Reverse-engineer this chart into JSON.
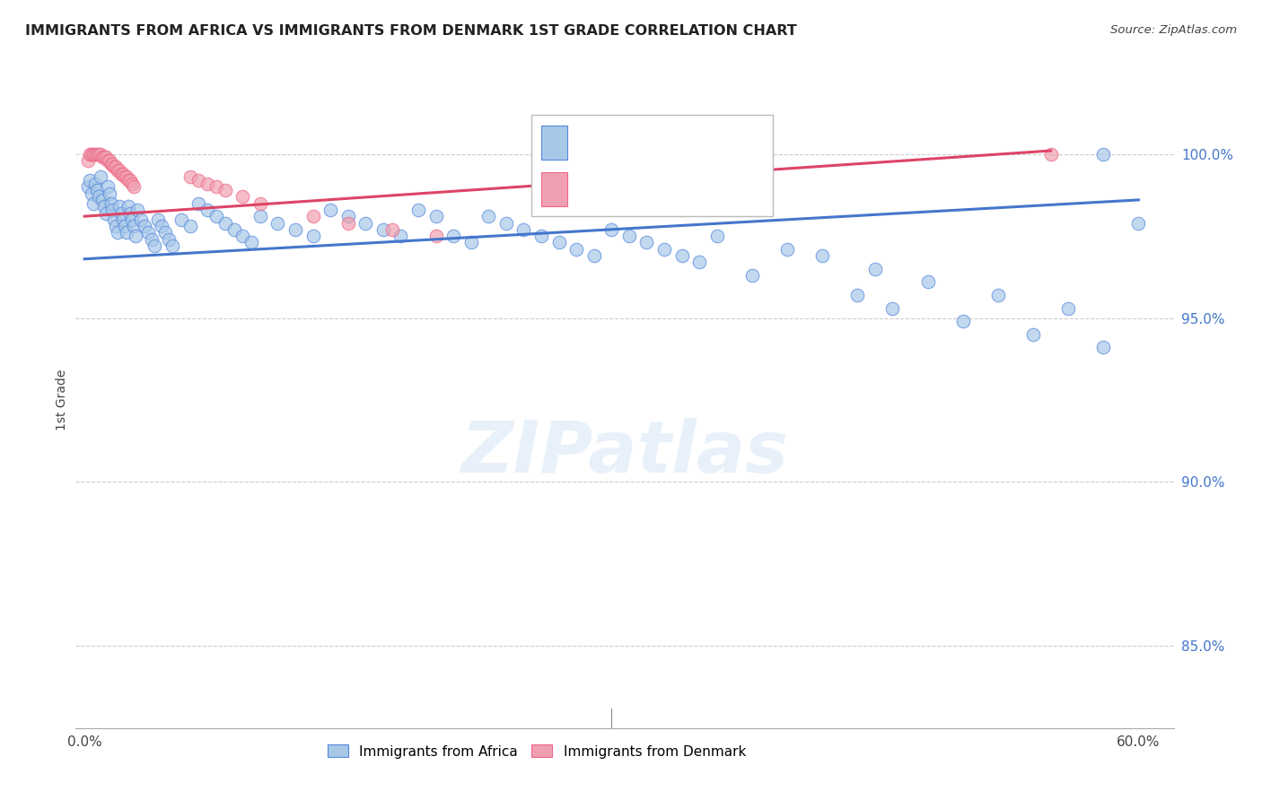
{
  "title": "IMMIGRANTS FROM AFRICA VS IMMIGRANTS FROM DENMARK 1ST GRADE CORRELATION CHART",
  "source": "Source: ZipAtlas.com",
  "ylabel": "1st Grade",
  "x_tick_labels": [
    "0.0%",
    "",
    "",
    "",
    "",
    "",
    "60.0%"
  ],
  "x_tick_values": [
    0.0,
    0.1,
    0.2,
    0.3,
    0.4,
    0.5,
    0.6
  ],
  "y_tick_labels": [
    "85.0%",
    "90.0%",
    "95.0%",
    "100.0%"
  ],
  "y_tick_values": [
    0.85,
    0.9,
    0.95,
    1.0
  ],
  "xlim": [
    -0.005,
    0.62
  ],
  "ylim": [
    0.825,
    1.025
  ],
  "legend_blue_label": "Immigrants from Africa",
  "legend_pink_label": "Immigrants from Denmark",
  "blue_color": "#A8C8E8",
  "pink_color": "#F0A0B0",
  "blue_line_color": "#4477CC",
  "pink_line_color": "#DD4466",
  "blue_edge_color": "#5588DD",
  "pink_edge_color": "#EE6688",
  "blue_x": [
    0.002,
    0.003,
    0.004,
    0.005,
    0.006,
    0.007,
    0.008,
    0.009,
    0.01,
    0.011,
    0.012,
    0.013,
    0.014,
    0.015,
    0.016,
    0.017,
    0.018,
    0.019,
    0.02,
    0.021,
    0.022,
    0.023,
    0.024,
    0.025,
    0.026,
    0.027,
    0.028,
    0.029,
    0.03,
    0.032,
    0.034,
    0.036,
    0.038,
    0.04,
    0.042,
    0.044,
    0.046,
    0.048,
    0.05,
    0.055,
    0.06,
    0.065,
    0.07,
    0.075,
    0.08,
    0.085,
    0.09,
    0.095,
    0.1,
    0.11,
    0.12,
    0.13,
    0.14,
    0.15,
    0.16,
    0.17,
    0.18,
    0.19,
    0.2,
    0.21,
    0.22,
    0.23,
    0.24,
    0.25,
    0.26,
    0.27,
    0.28,
    0.29,
    0.3,
    0.31,
    0.32,
    0.33,
    0.34,
    0.35,
    0.36,
    0.38,
    0.4,
    0.42,
    0.44,
    0.45,
    0.46,
    0.48,
    0.5,
    0.52,
    0.54,
    0.56,
    0.58,
    0.6,
    0.58
  ],
  "blue_y": [
    0.99,
    0.992,
    0.988,
    0.985,
    0.991,
    0.989,
    0.987,
    0.993,
    0.986,
    0.984,
    0.982,
    0.99,
    0.988,
    0.985,
    0.983,
    0.98,
    0.978,
    0.976,
    0.984,
    0.982,
    0.98,
    0.978,
    0.976,
    0.984,
    0.982,
    0.98,
    0.978,
    0.975,
    0.983,
    0.98,
    0.978,
    0.976,
    0.974,
    0.972,
    0.98,
    0.978,
    0.976,
    0.974,
    0.972,
    0.98,
    0.978,
    0.985,
    0.983,
    0.981,
    0.979,
    0.977,
    0.975,
    0.973,
    0.981,
    0.979,
    0.977,
    0.975,
    0.983,
    0.981,
    0.979,
    0.977,
    0.975,
    0.983,
    0.981,
    0.975,
    0.973,
    0.981,
    0.979,
    0.977,
    0.975,
    0.973,
    0.971,
    0.969,
    0.977,
    0.975,
    0.973,
    0.971,
    0.969,
    0.967,
    0.975,
    0.963,
    0.971,
    0.969,
    0.957,
    0.965,
    0.953,
    0.961,
    0.949,
    0.957,
    0.945,
    0.953,
    0.941,
    0.979,
    1.0
  ],
  "pink_x": [
    0.002,
    0.003,
    0.004,
    0.005,
    0.006,
    0.007,
    0.008,
    0.009,
    0.01,
    0.011,
    0.012,
    0.013,
    0.014,
    0.015,
    0.016,
    0.017,
    0.018,
    0.019,
    0.02,
    0.021,
    0.022,
    0.023,
    0.024,
    0.025,
    0.026,
    0.027,
    0.028,
    0.06,
    0.065,
    0.07,
    0.075,
    0.08,
    0.09,
    0.1,
    0.13,
    0.15,
    0.175,
    0.2,
    0.55
  ],
  "pink_y": [
    0.998,
    1.0,
    1.0,
    1.0,
    1.0,
    1.0,
    1.0,
    1.0,
    0.999,
    0.999,
    0.999,
    0.998,
    0.998,
    0.997,
    0.997,
    0.996,
    0.996,
    0.995,
    0.995,
    0.994,
    0.994,
    0.993,
    0.993,
    0.992,
    0.992,
    0.991,
    0.99,
    0.993,
    0.992,
    0.991,
    0.99,
    0.989,
    0.987,
    0.985,
    0.981,
    0.979,
    0.977,
    0.975,
    1.0
  ],
  "blue_trend": [
    0.0,
    0.6,
    0.968,
    0.986
  ],
  "pink_trend": [
    0.0,
    0.55,
    0.981,
    1.001
  ]
}
